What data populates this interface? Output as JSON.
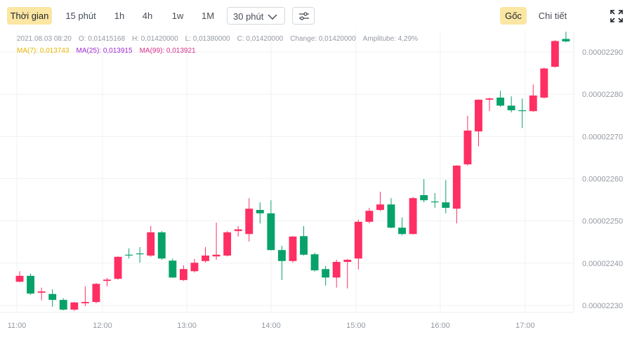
{
  "toolbar": {
    "intervals": [
      "Thời gian",
      "15 phút",
      "1h",
      "4h",
      "1w",
      "1M"
    ],
    "dropdown": "30 phút",
    "views": [
      "Gốc",
      "Chi tiết"
    ]
  },
  "info": [
    "2021.08.03 08:20",
    "O: 0,01415168",
    "H: 0,01420000",
    "L: 0,01380000",
    "C: 0,01420000",
    "Change: 0,01420000",
    "Amplitube: 4,29%"
  ],
  "ma": [
    {
      "text": "MA(7): 0,013743",
      "color": "#e8b600"
    },
    {
      "text": "MA(25): 0,013915",
      "color": "#a12bd3"
    },
    {
      "text": "MA(99): 0,013921",
      "color": "#d6308a"
    }
  ],
  "chart_data": {
    "type": "candlestick",
    "up_color": "#ff2e63",
    "down_color": "#07a26a",
    "grid": true,
    "categories": [
      null,
      null,
      null,
      null,
      null,
      null,
      null,
      null,
      null,
      null,
      null,
      null,
      null,
      null,
      null,
      null,
      null,
      null,
      null,
      null,
      null,
      null,
      null,
      null,
      null,
      null,
      null,
      null,
      null,
      null,
      null,
      null,
      null,
      null,
      null,
      null,
      null,
      null,
      null,
      null,
      null,
      null,
      null,
      null,
      null,
      null,
      null,
      null,
      null,
      null,
      null
    ],
    "open": [
      2.2356e-05,
      2.237e-05,
      2.233e-05,
      2.2327e-05,
      2.2313e-05,
      2.229e-05,
      2.2305e-05,
      2.2308e-05,
      2.2358e-05,
      2.2363e-05,
      2.242e-05,
      2.2423e-05,
      2.2418e-05,
      2.2473e-05,
      2.2406e-05,
      2.236e-05,
      2.2381e-05,
      2.2405e-05,
      2.2416e-05,
      2.2418e-05,
      2.2476e-05,
      2.2469e-05,
      2.2526e-05,
      2.2518e-05,
      2.2431e-05,
      2.2405e-05,
      2.2464e-05,
      2.2421e-05,
      2.2386e-05,
      2.2366e-05,
      2.2403e-05,
      2.2411e-05,
      2.2498e-05,
      2.2526e-05,
      2.2539e-05,
      2.2484e-05,
      2.2469e-05,
      2.2561e-05,
      2.2546e-05,
      2.2544e-05,
      2.2529e-05,
      2.2634e-05,
      2.2712e-05,
      2.2787e-05,
      2.2792e-05,
      2.2773e-05,
      2.2762e-05,
      2.276e-05,
      2.2792e-05,
      2.2865e-05,
      2.2931e-05
    ],
    "high": [
      2.2381e-05,
      2.2375e-05,
      2.2342e-05,
      2.2338e-05,
      2.2317e-05,
      2.2308e-05,
      2.2345e-05,
      2.2353e-05,
      2.2365e-05,
      2.2416e-05,
      2.2435e-05,
      2.2438e-05,
      2.2488e-05,
      2.2476e-05,
      2.2411e-05,
      2.2395e-05,
      2.241e-05,
      2.2438e-05,
      2.2496e-05,
      2.2476e-05,
      2.2488e-05,
      2.2554e-05,
      2.2544e-05,
      2.2549e-05,
      2.2441e-05,
      2.2464e-05,
      2.2488e-05,
      2.2425e-05,
      2.2393e-05,
      2.2408e-05,
      2.241e-05,
      2.2503e-05,
      2.2531e-05,
      2.2569e-05,
      2.2554e-05,
      2.2508e-05,
      2.2557e-05,
      2.2599e-05,
      2.2566e-05,
      2.2597e-05,
      2.2632e-05,
      2.2749e-05,
      2.2788e-05,
      2.2792e-05,
      2.2808e-05,
      2.2795e-05,
      2.279e-05,
      2.2823e-05,
      2.2863e-05,
      2.2928e-05,
      2.2948e-05
    ],
    "low": [
      2.2355e-05,
      2.2325e-05,
      2.2312e-05,
      2.2297e-05,
      2.2288e-05,
      2.2287e-05,
      2.2298e-05,
      2.2305e-05,
      2.2345e-05,
      2.2361e-05,
      2.2411e-05,
      2.2401e-05,
      2.2415e-05,
      2.2408e-05,
      2.2365e-05,
      2.2358e-05,
      2.2378e-05,
      2.2401e-05,
      2.2408e-05,
      2.2416e-05,
      2.2463e-05,
      2.2451e-05,
      2.2494e-05,
      2.243e-05,
      2.236e-05,
      2.2401e-05,
      2.2418e-05,
      2.238e-05,
      2.2347e-05,
      2.2342e-05,
      2.234e-05,
      2.2385e-05,
      2.2494e-05,
      2.2523e-05,
      2.2483e-05,
      2.2466e-05,
      2.2468e-05,
      2.2544e-05,
      2.2531e-05,
      2.2518e-05,
      2.2494e-05,
      2.2631e-05,
      2.2677e-05,
      2.276e-05,
      2.277e-05,
      2.2757e-05,
      2.272e-05,
      2.2758e-05,
      2.279e-05,
      2.2863e-05,
      2.2923e-05
    ],
    "close": [
      2.237e-05,
      2.2328e-05,
      2.2333e-05,
      2.2313e-05,
      2.229e-05,
      2.2307e-05,
      2.2308e-05,
      2.2351e-05,
      2.2361e-05,
      2.2415e-05,
      2.2418e-05,
      2.2421e-05,
      2.2473e-05,
      2.2411e-05,
      2.2366e-05,
      2.2386e-05,
      2.2401e-05,
      2.2418e-05,
      2.242e-05,
      2.2473e-05,
      2.248e-05,
      2.2529e-05,
      2.2518e-05,
      2.2431e-05,
      2.2405e-05,
      2.2463e-05,
      2.242e-05,
      2.2383e-05,
      2.2366e-05,
      2.2403e-05,
      2.2408e-05,
      2.2498e-05,
      2.2524e-05,
      2.2539e-05,
      2.2484e-05,
      2.2469e-05,
      2.2554e-05,
      2.2549e-05,
      2.2544e-05,
      2.2531e-05,
      2.2631e-05,
      2.2714e-05,
      2.2787e-05,
      2.279e-05,
      2.2773e-05,
      2.2762e-05,
      2.276e-05,
      2.2797e-05,
      2.2861e-05,
      2.2926e-05,
      2.2925e-05
    ],
    "ylim": [
      2.228e-05,
      2.295e-05
    ],
    "yticks": [
      {
        "value": 2.23e-05,
        "label": "0.00002230"
      },
      {
        "value": 2.24e-05,
        "label": "0.00002240"
      },
      {
        "value": 2.25e-05,
        "label": "0.00002250"
      },
      {
        "value": 2.26e-05,
        "label": "0.00002260"
      },
      {
        "value": 2.27e-05,
        "label": "0.00002270"
      },
      {
        "value": 2.28e-05,
        "label": "0.00002280"
      },
      {
        "value": 2.29e-05,
        "label": "0.00002290"
      }
    ],
    "xlim": [
      -1.8,
      50.71
    ],
    "xticks": [
      {
        "value": -0.26,
        "label": "11:00"
      },
      {
        "value": 7.58,
        "label": "12:00"
      },
      {
        "value": 15.3,
        "label": "13:00"
      },
      {
        "value": 23.01,
        "label": "14:00"
      },
      {
        "value": 30.78,
        "label": "15:00"
      },
      {
        "value": 38.5,
        "label": "16:00"
      },
      {
        "value": 46.27,
        "label": "17:00"
      }
    ]
  }
}
